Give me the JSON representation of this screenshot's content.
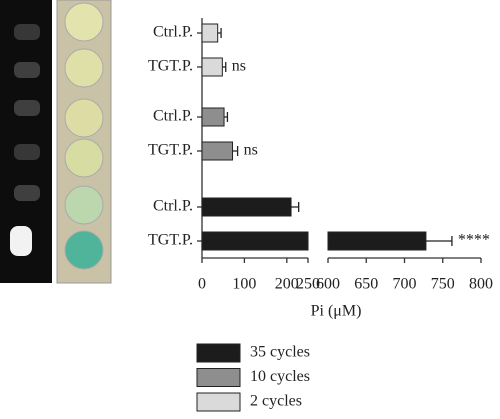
{
  "chart_data": {
    "type": "bar",
    "orientation": "horizontal",
    "categories": [
      "Ctrl.P.",
      "TGT.P."
    ],
    "series": [
      {
        "name": "35 cycles",
        "color": "#1c1c1c",
        "values": [
          210,
          728
        ],
        "errors": [
          18,
          34
        ],
        "annotation": "****"
      },
      {
        "name": "10 cycles",
        "color": "#8e8e8e",
        "values": [
          52,
          72
        ],
        "errors": [
          8,
          12
        ],
        "annotation": "ns"
      },
      {
        "name": "2 cycles",
        "color": "#dadada",
        "values": [
          37,
          48
        ],
        "errors": [
          8,
          8
        ],
        "annotation": "ns"
      }
    ],
    "xlim": [
      0,
      800
    ],
    "xbreak": [
      250,
      600
    ],
    "xticks": [
      0,
      100,
      200,
      250,
      600,
      650,
      700,
      750,
      800
    ],
    "xlabel": "Pi (μM)"
  }
}
